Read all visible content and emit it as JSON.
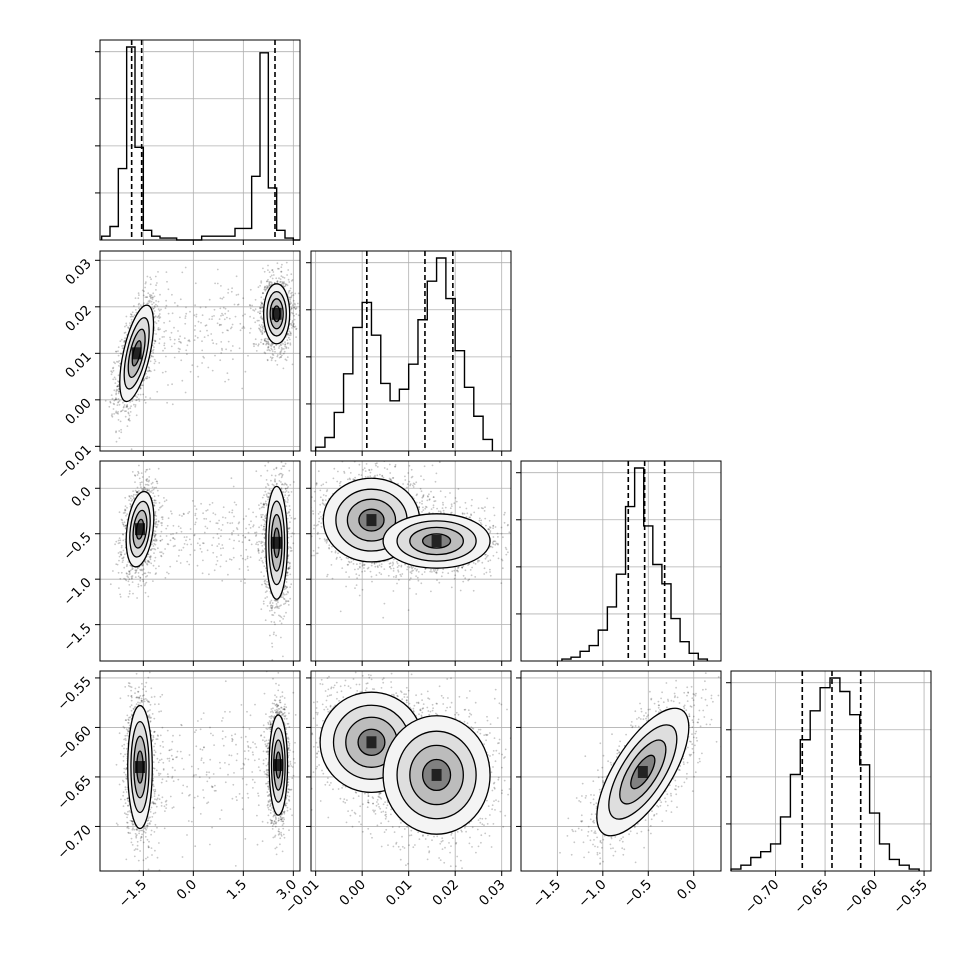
{
  "chart_data": {
    "type": "corner",
    "parameters": [
      {
        "range": [
          -2.8,
          3.2
        ],
        "ticks": [
          -1.5,
          0.0,
          1.5,
          3.0
        ],
        "tick_labels": [
          "−1.5",
          "0.0",
          "1.5",
          "3.0"
        ],
        "quantiles": [
          -1.85,
          -1.55,
          2.45
        ]
      },
      {
        "range": [
          -0.011,
          0.032
        ],
        "ticks": [
          -0.01,
          0.0,
          0.01,
          0.02,
          0.03
        ],
        "tick_labels": [
          "−0.01",
          "0.00",
          "0.01",
          "0.02",
          "0.03"
        ],
        "quantiles": [
          0.001,
          0.0135,
          0.0195
        ]
      },
      {
        "range": [
          -1.9,
          0.3
        ],
        "ticks": [
          -1.5,
          -1.0,
          -0.5,
          0.0
        ],
        "tick_labels": [
          "−1.5",
          "−1.0",
          "−0.5",
          "0.0"
        ],
        "quantiles": [
          -0.72,
          -0.54,
          -0.32
        ]
      },
      {
        "range": [
          -0.745,
          -0.543
        ],
        "ticks": [
          -0.7,
          -0.65,
          -0.6,
          -0.55
        ],
        "tick_labels": [
          "−0.70",
          "−0.65",
          "−0.60",
          "−0.55"
        ],
        "quantiles": [
          -0.673,
          -0.643,
          -0.614
        ]
      }
    ],
    "histograms": [
      {
        "edges": [
          -2.75,
          -2.5,
          -2.25,
          -2.0,
          -1.75,
          -1.5,
          -1.25,
          -1.0,
          -0.5,
          0.25,
          1.25,
          1.75,
          2.0,
          2.25,
          2.5,
          2.75,
          3.0,
          3.2
        ],
        "counts": [
          0.02,
          0.07,
          0.37,
          1.0,
          0.48,
          0.05,
          0.02,
          0.01,
          0.0,
          0.02,
          0.06,
          0.33,
          0.97,
          0.27,
          0.05,
          0.01,
          0.0
        ]
      },
      {
        "edges": [
          -0.01,
          -0.008,
          -0.006,
          -0.004,
          -0.002,
          0.0,
          0.002,
          0.004,
          0.006,
          0.008,
          0.01,
          0.012,
          0.014,
          0.016,
          0.018,
          0.02,
          0.022,
          0.024,
          0.026,
          0.028
        ],
        "counts": [
          0.02,
          0.07,
          0.2,
          0.4,
          0.64,
          0.77,
          0.6,
          0.35,
          0.26,
          0.32,
          0.45,
          0.68,
          0.88,
          1.0,
          0.79,
          0.52,
          0.33,
          0.18,
          0.06
        ]
      },
      {
        "edges": [
          -1.45,
          -1.35,
          -1.25,
          -1.15,
          -1.05,
          -0.95,
          -0.85,
          -0.75,
          -0.65,
          -0.55,
          -0.45,
          -0.35,
          -0.25,
          -0.15,
          -0.05,
          0.05,
          0.15
        ],
        "counts": [
          0.01,
          0.02,
          0.05,
          0.08,
          0.16,
          0.28,
          0.45,
          0.8,
          1.0,
          0.7,
          0.5,
          0.4,
          0.22,
          0.1,
          0.04,
          0.01
        ]
      },
      {
        "edges": [
          -0.745,
          -0.735,
          -0.725,
          -0.715,
          -0.705,
          -0.695,
          -0.685,
          -0.675,
          -0.665,
          -0.655,
          -0.645,
          -0.635,
          -0.625,
          -0.615,
          -0.605,
          -0.595,
          -0.585,
          -0.575,
          -0.565,
          -0.555
        ],
        "counts": [
          0.01,
          0.03,
          0.07,
          0.1,
          0.14,
          0.28,
          0.5,
          0.68,
          0.83,
          0.95,
          1.0,
          0.93,
          0.81,
          0.55,
          0.3,
          0.14,
          0.06,
          0.03,
          0.01
        ]
      }
    ],
    "modes": [
      [
        {
          "mu": [
            -1.7,
            0.01
          ],
          "sigma": [
            0.22,
            0.0045
          ],
          "rho": 0.6
        },
        {
          "mu": [
            2.5,
            0.0185
          ],
          "sigma": [
            0.17,
            0.0028
          ],
          "rho": 0.0
        }
      ],
      [
        {
          "mu": [
            -1.6,
            -0.45
          ],
          "sigma": [
            0.18,
            0.18
          ],
          "rho": 0.3
        },
        {
          "mu": [
            2.5,
            -0.6
          ],
          "sigma": [
            0.14,
            0.27
          ],
          "rho": 0.0
        }
      ],
      [
        {
          "mu": [
            -1.6,
            -0.64
          ],
          "sigma": [
            0.16,
            0.027
          ],
          "rho": 0.0
        },
        {
          "mu": [
            2.55,
            -0.638
          ],
          "sigma": [
            0.12,
            0.022
          ],
          "rho": 0.0
        }
      ],
      [
        {
          "mu": [
            0.002,
            -0.35
          ],
          "sigma": [
            0.0045,
            0.2
          ],
          "rho": 0.0
        },
        {
          "mu": [
            0.016,
            -0.58
          ],
          "sigma": [
            0.005,
            0.13
          ],
          "rho": 0.0
        }
      ],
      [
        {
          "mu": [
            0.002,
            -0.615
          ],
          "sigma": [
            0.0048,
            0.022
          ],
          "rho": 0.0
        },
        {
          "mu": [
            0.016,
            -0.648
          ],
          "sigma": [
            0.005,
            0.026
          ],
          "rho": 0.0
        }
      ],
      [
        {
          "mu": [
            -0.56,
            -0.645
          ],
          "sigma": [
            0.22,
            0.028
          ],
          "rho": 0.7
        }
      ]
    ]
  }
}
